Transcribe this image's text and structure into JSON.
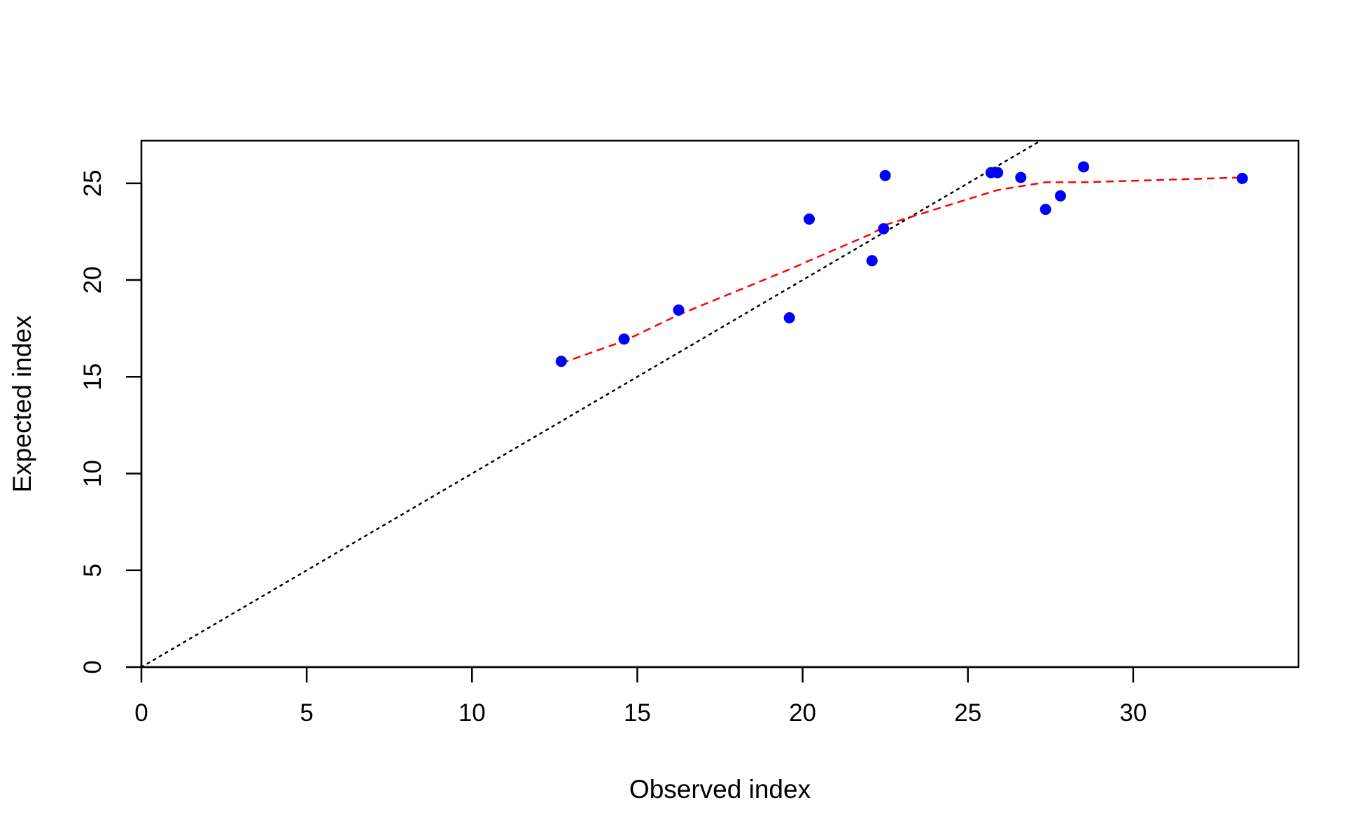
{
  "chart_data": {
    "type": "scatter",
    "title": "",
    "xlabel": "Observed index",
    "ylabel": "Expected index",
    "xlim": [
      0,
      35
    ],
    "ylim": [
      0,
      27.2
    ],
    "x_ticks": [
      0,
      5,
      10,
      15,
      20,
      25,
      30
    ],
    "y_ticks": [
      0,
      5,
      10,
      15,
      20,
      25
    ],
    "grid": false,
    "legend": "none",
    "points": [
      {
        "x": 12.7,
        "y": 15.8
      },
      {
        "x": 14.6,
        "y": 16.95
      },
      {
        "x": 16.25,
        "y": 18.45
      },
      {
        "x": 19.6,
        "y": 18.05
      },
      {
        "x": 20.2,
        "y": 23.15
      },
      {
        "x": 22.1,
        "y": 21.0
      },
      {
        "x": 22.45,
        "y": 22.65
      },
      {
        "x": 22.5,
        "y": 25.4
      },
      {
        "x": 25.7,
        "y": 25.55
      },
      {
        "x": 25.9,
        "y": 25.55
      },
      {
        "x": 26.6,
        "y": 25.3
      },
      {
        "x": 27.35,
        "y": 23.65
      },
      {
        "x": 27.8,
        "y": 24.35
      },
      {
        "x": 28.5,
        "y": 25.85
      },
      {
        "x": 33.3,
        "y": 25.25
      }
    ],
    "reference_line": {
      "style": "dotted",
      "color": "#000000",
      "slope": 1,
      "intercept": 0
    },
    "smooth_line": {
      "style": "dashed",
      "color": "#ff0000",
      "x": [
        12.7,
        14.6,
        16.25,
        19.6,
        20.2,
        22.1,
        22.45,
        22.5,
        25.7,
        25.9,
        26.6,
        27.35,
        27.8,
        28.5,
        33.3
      ],
      "y": [
        15.7,
        16.85,
        18.2,
        20.55,
        21.0,
        22.4,
        22.75,
        22.85,
        24.55,
        24.65,
        24.85,
        25.05,
        25.05,
        25.05,
        25.3
      ]
    },
    "point_color": "#0000ff"
  }
}
